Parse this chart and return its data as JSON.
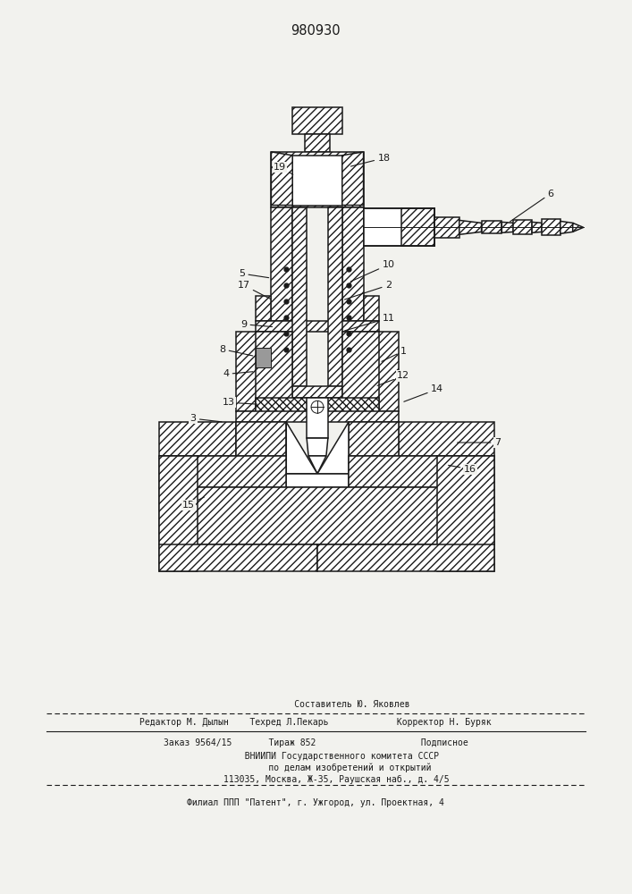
{
  "patent_number": "980930",
  "bg_color": "#f2f2ee",
  "line_color": "#1a1a1a",
  "label_fontsize": 8,
  "fig_width": 7.07,
  "fig_height": 10.0,
  "footer_line1": "              Составитель Ю. Яковлев",
  "footer_line2": "Редактор М. Дылын    Техред Л.Пекарь             Корректор Н. Буряк",
  "footer_line3": "Заказ 9564/15       Тираж 852                    Подписное",
  "footer_line4": "          ВНИИПИ Государственного комитета СССР",
  "footer_line5": "             по делам изобретений и открытий",
  "footer_line6": "        113035, Москва, Ж-35, Раушская наб., д. 4/5",
  "footer_line7": "Филиал ППП \"Патент\", г. Ужгород, ул. Проектная, 4"
}
